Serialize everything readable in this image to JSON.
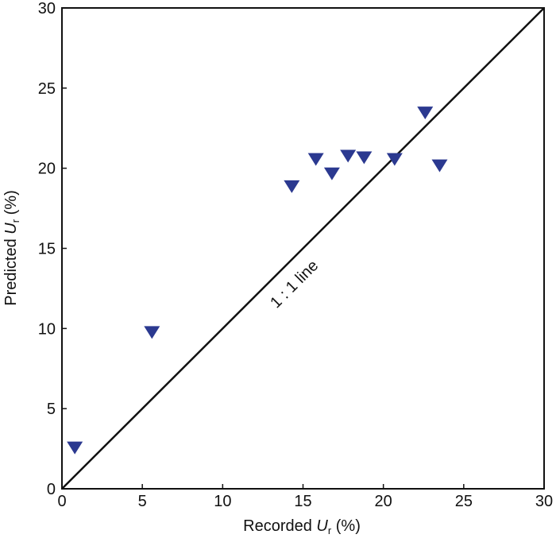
{
  "chart_data": {
    "type": "scatter",
    "x_label": {
      "prefix": "Recorded ",
      "symbol": "U",
      "subscript": "r",
      "suffix": " (%)"
    },
    "y_label": {
      "prefix": "Predicted ",
      "symbol": "U",
      "subscript": "r",
      "suffix": " (%)"
    },
    "annotation": "1 : 1 line",
    "color": "#2b3990",
    "x": [
      0.8,
      5.6,
      14.3,
      15.8,
      16.8,
      17.8,
      18.8,
      20.7,
      22.6,
      23.5
    ],
    "values": [
      2.6,
      9.8,
      18.9,
      20.6,
      19.7,
      20.8,
      20.7,
      20.6,
      23.5,
      20.2
    ],
    "xlim": [
      0,
      30
    ],
    "ylim": [
      0,
      30
    ],
    "xticks": [
      0,
      5,
      10,
      15,
      20,
      25,
      30
    ],
    "yticks": [
      0,
      5,
      10,
      15,
      20,
      25,
      30
    ]
  }
}
